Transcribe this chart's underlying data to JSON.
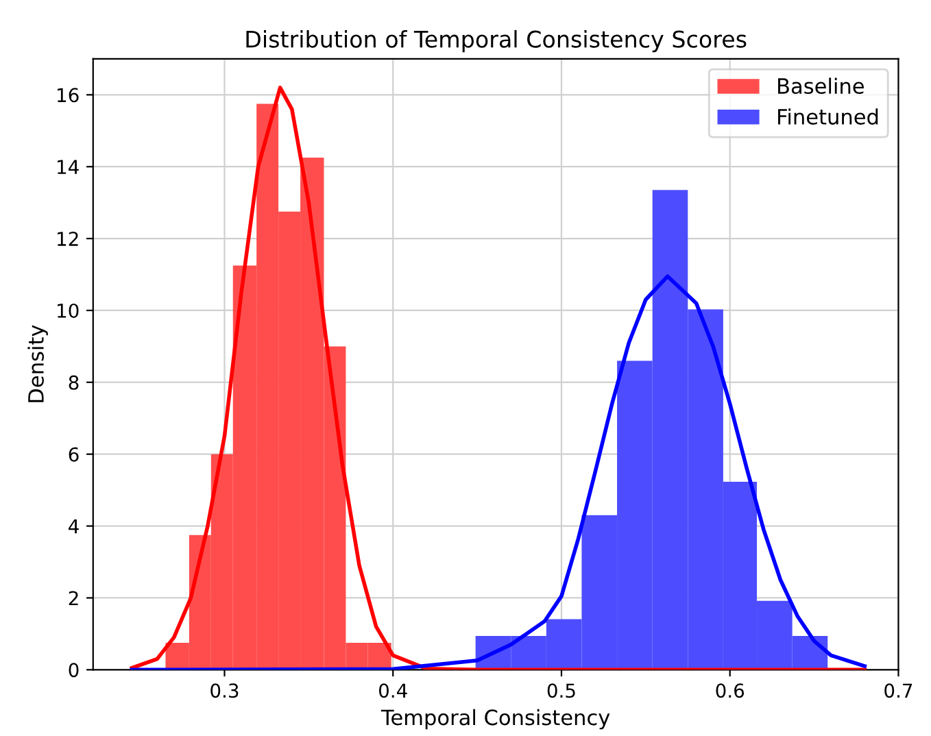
{
  "chart_data": {
    "type": "histogram",
    "title": "Distribution of Temporal Consistency Scores",
    "xlabel": "Temporal Consistency",
    "ylabel": "Density",
    "xlim": [
      0.222,
      0.7
    ],
    "ylim": [
      0,
      17
    ],
    "xticks": [
      0.3,
      0.4,
      0.5,
      0.6,
      0.7
    ],
    "yticks": [
      0,
      2,
      4,
      6,
      8,
      10,
      12,
      14,
      16
    ],
    "grid": true,
    "legend": "top right",
    "series": [
      {
        "name": "Baseline",
        "color": "#ff4d4d",
        "bins": [
          0.265,
          0.279,
          0.292,
          0.305,
          0.319,
          0.332,
          0.345,
          0.359,
          0.372,
          0.385,
          0.399
        ],
        "values": [
          0.75,
          3.75,
          6,
          11.25,
          15.75,
          12.75,
          14.25,
          9,
          0.75,
          0.75
        ]
      },
      {
        "name": "Finetuned",
        "color": "#4d4dff",
        "bins": [
          0.449,
          0.47,
          0.491,
          0.512,
          0.533,
          0.554,
          0.575,
          0.596,
          0.616,
          0.637,
          0.658
        ],
        "values": [
          0.94,
          0.94,
          1.41,
          4.3,
          8.6,
          13.35,
          10.03,
          5.23,
          1.92,
          0.94
        ]
      },
      {
        "type": "line",
        "color": "#ff0000",
        "x": [
          0.245,
          0.26,
          0.27,
          0.28,
          0.29,
          0.3,
          0.31,
          0.32,
          0.333,
          0.34,
          0.35,
          0.36,
          0.37,
          0.38,
          0.39,
          0.4,
          0.42,
          0.45,
          0.68
        ],
        "values": [
          0.05,
          0.3,
          0.9,
          2.0,
          4.0,
          6.5,
          10.5,
          14.0,
          16.2,
          15.6,
          13.0,
          9.3,
          5.7,
          2.9,
          1.2,
          0.4,
          0.03,
          0,
          0
        ]
      },
      {
        "type": "line",
        "color": "#0000ff",
        "x": [
          0.245,
          0.4,
          0.45,
          0.47,
          0.49,
          0.5,
          0.51,
          0.52,
          0.53,
          0.54,
          0.55,
          0.563,
          0.58,
          0.59,
          0.6,
          0.61,
          0.62,
          0.63,
          0.64,
          0.65,
          0.66,
          0.68
        ],
        "values": [
          0,
          0.02,
          0.26,
          0.7,
          1.35,
          2.05,
          3.65,
          5.5,
          7.4,
          9.1,
          10.3,
          10.95,
          10.2,
          9.0,
          7.4,
          5.6,
          3.9,
          2.5,
          1.5,
          0.8,
          0.4,
          0.1
        ]
      }
    ]
  }
}
